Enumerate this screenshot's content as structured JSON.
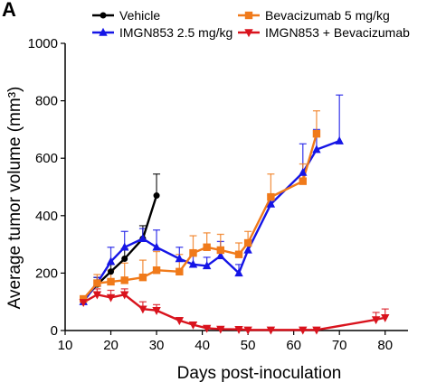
{
  "panel_label": "A",
  "chart_data": {
    "type": "line",
    "title": "",
    "xlabel": "Days post-inoculation",
    "ylabel": "Average tumor volume (mm³)",
    "xlim": [
      10,
      85
    ],
    "ylim": [
      0,
      1000
    ],
    "xticks": [
      10,
      20,
      30,
      40,
      50,
      60,
      70,
      80
    ],
    "yticks": [
      0,
      200,
      400,
      600,
      800,
      1000
    ],
    "grid": false,
    "legend": "top",
    "series": [
      {
        "name": "Vehicle",
        "color": "#000000",
        "marker": "circle",
        "x": [
          14,
          17,
          20,
          23,
          27,
          30
        ],
        "y": [
          105,
          160,
          205,
          250,
          320,
          470
        ],
        "err": [
          10,
          25,
          25,
          35,
          45,
          75
        ]
      },
      {
        "name": "IMGN853 2.5 mg/kg",
        "color": "#1515e6",
        "marker": "triangle-up",
        "x": [
          14,
          17,
          20,
          23,
          27,
          30,
          35,
          38,
          41,
          44,
          48,
          50,
          55,
          62,
          65,
          70
        ],
        "y": [
          100,
          165,
          240,
          290,
          320,
          290,
          250,
          230,
          225,
          260,
          200,
          280,
          440,
          550,
          630,
          660
        ],
        "err": [
          10,
          20,
          50,
          55,
          35,
          60,
          40,
          30,
          30,
          50,
          30,
          20,
          30,
          100,
          70,
          160
        ]
      },
      {
        "name": "Bevacizumab 5 mg/kg",
        "color": "#f07a1a",
        "marker": "square",
        "x": [
          14,
          17,
          20,
          23,
          27,
          30,
          35,
          38,
          41,
          44,
          48,
          50,
          55,
          62,
          65
        ],
        "y": [
          110,
          165,
          170,
          175,
          185,
          210,
          205,
          270,
          290,
          280,
          265,
          305,
          465,
          520,
          685
        ],
        "err": [
          10,
          30,
          40,
          60,
          60,
          65,
          60,
          60,
          50,
          55,
          40,
          40,
          80,
          60,
          80
        ]
      },
      {
        "name": "IMGN853 + Bevacizumab",
        "color": "#d9131d",
        "marker": "triangle-down",
        "x": [
          14,
          17,
          20,
          23,
          27,
          30,
          35,
          38,
          41,
          44,
          48,
          50,
          55,
          62,
          65,
          78,
          80
        ],
        "y": [
          98,
          125,
          115,
          125,
          75,
          70,
          35,
          20,
          8,
          5,
          4,
          2,
          2,
          2,
          2,
          38,
          45
        ],
        "err": [
          10,
          20,
          25,
          20,
          25,
          20,
          10,
          8,
          5,
          4,
          3,
          2,
          2,
          2,
          2,
          25,
          30
        ]
      }
    ]
  }
}
